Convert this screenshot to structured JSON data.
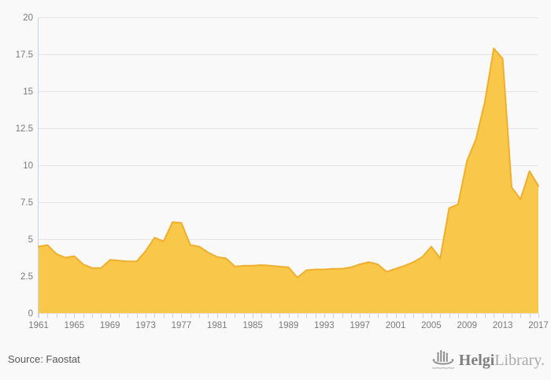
{
  "chart_data": {
    "type": "area",
    "title": "",
    "xlabel": "",
    "ylabel": "",
    "x": [
      1961,
      1962,
      1963,
      1964,
      1965,
      1966,
      1967,
      1968,
      1969,
      1970,
      1971,
      1972,
      1973,
      1974,
      1975,
      1976,
      1977,
      1978,
      1979,
      1980,
      1981,
      1982,
      1983,
      1984,
      1985,
      1986,
      1987,
      1988,
      1989,
      1990,
      1991,
      1992,
      1993,
      1994,
      1995,
      1996,
      1997,
      1998,
      1999,
      2000,
      2001,
      2002,
      2003,
      2004,
      2005,
      2006,
      2007,
      2008,
      2009,
      2010,
      2011,
      2012,
      2013,
      2014,
      2015,
      2016,
      2017
    ],
    "values": [
      4.5,
      4.6,
      4.0,
      3.75,
      3.85,
      3.3,
      3.05,
      3.05,
      3.6,
      3.55,
      3.5,
      3.5,
      4.2,
      5.1,
      4.85,
      6.15,
      6.1,
      4.6,
      4.5,
      4.1,
      3.8,
      3.7,
      3.15,
      3.2,
      3.2,
      3.25,
      3.2,
      3.15,
      3.1,
      2.4,
      2.9,
      2.95,
      2.95,
      3.0,
      3.0,
      3.1,
      3.3,
      3.45,
      3.3,
      2.8,
      3.0,
      3.2,
      3.45,
      3.8,
      4.5,
      3.7,
      7.1,
      7.35,
      10.3,
      11.75,
      14.3,
      17.9,
      17.2,
      8.5,
      7.7,
      9.6,
      8.6
    ],
    "ylim": [
      0,
      20
    ],
    "y_tick_values": [
      0,
      2.5,
      5,
      7.5,
      10,
      12.5,
      15,
      17.5,
      20
    ],
    "y_tick_labels": [
      "0",
      "2.5",
      "5",
      "7.5",
      "10",
      "12.5",
      "15",
      "17.5",
      "20"
    ],
    "x_tick_labels": [
      "1961",
      "1965",
      "1969",
      "1973",
      "1977",
      "1981",
      "1985",
      "1989",
      "1993",
      "1997",
      "2001",
      "2005",
      "2009",
      "2013",
      "2017"
    ],
    "grid": true,
    "legend": "none"
  },
  "colors": {
    "area_fill": "#F9C84A",
    "area_line": "#F0AE2D",
    "gridline": "#e4e4e4",
    "axis_tick": "#c9d2e4",
    "axis_label": "#7a7a7a",
    "background": "#f9f9f9",
    "logo_gray": "#8f8f8f"
  },
  "footer": {
    "source_label": "Source: Faostat"
  },
  "logo": {
    "brand_primary": "Helgi",
    "brand_secondary": "Library."
  }
}
